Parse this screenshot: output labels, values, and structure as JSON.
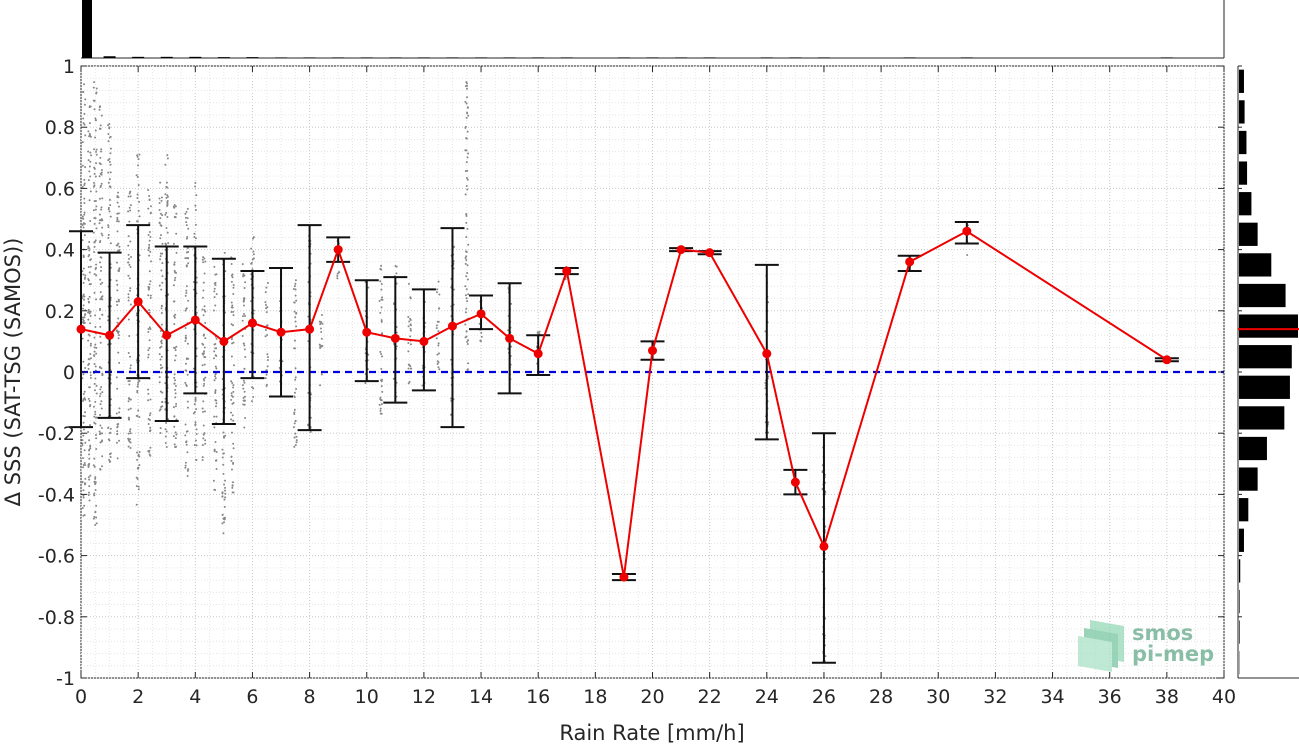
{
  "chart_data": {
    "type": "scatter",
    "xlabel": "Rain Rate [mm/h]",
    "ylabel": "Δ SSS (SAT-TSG (SAMOS))",
    "xlim": [
      0,
      40
    ],
    "ylim": [
      -1,
      1
    ],
    "x_ticks": [
      0,
      2,
      4,
      6,
      8,
      10,
      12,
      14,
      16,
      18,
      20,
      22,
      24,
      26,
      28,
      30,
      32,
      34,
      36,
      38,
      40
    ],
    "y_ticks": [
      -1,
      -0.8,
      -0.6,
      -0.4,
      -0.2,
      0,
      0.2,
      0.4,
      0.6,
      0.8,
      1
    ],
    "y_tick_labels": [
      "-1",
      "-0.8",
      "-0.6",
      "-0.4",
      "-0.2",
      "0",
      "0.2",
      "0.4",
      "0.6",
      "0.8",
      "1"
    ],
    "grid": true,
    "zero_line": {
      "y": 0,
      "color": "#0000dd",
      "style": "dashed"
    },
    "mean_series": {
      "color": "#ee0000",
      "points": [
        {
          "x": 0,
          "y": 0.14,
          "low": -0.18,
          "high": 0.46
        },
        {
          "x": 1,
          "y": 0.12,
          "low": -0.15,
          "high": 0.39
        },
        {
          "x": 2,
          "y": 0.23,
          "low": -0.02,
          "high": 0.48
        },
        {
          "x": 3,
          "y": 0.12,
          "low": -0.16,
          "high": 0.41
        },
        {
          "x": 4,
          "y": 0.17,
          "low": -0.07,
          "high": 0.41
        },
        {
          "x": 5,
          "y": 0.1,
          "low": -0.17,
          "high": 0.37
        },
        {
          "x": 6,
          "y": 0.16,
          "low": -0.02,
          "high": 0.33
        },
        {
          "x": 7,
          "y": 0.13,
          "low": -0.08,
          "high": 0.34
        },
        {
          "x": 8,
          "y": 0.14,
          "low": -0.19,
          "high": 0.48
        },
        {
          "x": 9,
          "y": 0.4,
          "low": 0.36,
          "high": 0.44
        },
        {
          "x": 10,
          "y": 0.13,
          "low": -0.03,
          "high": 0.3
        },
        {
          "x": 11,
          "y": 0.11,
          "low": -0.1,
          "high": 0.31
        },
        {
          "x": 12,
          "y": 0.1,
          "low": -0.06,
          "high": 0.27
        },
        {
          "x": 13,
          "y": 0.15,
          "low": -0.18,
          "high": 0.47
        },
        {
          "x": 14,
          "y": 0.19,
          "low": 0.14,
          "high": 0.25
        },
        {
          "x": 15,
          "y": 0.11,
          "low": -0.07,
          "high": 0.29
        },
        {
          "x": 16,
          "y": 0.06,
          "low": -0.01,
          "high": 0.12
        },
        {
          "x": 17,
          "y": 0.33,
          "low": 0.32,
          "high": 0.34
        },
        {
          "x": 19,
          "y": -0.67,
          "low": -0.68,
          "high": -0.66
        },
        {
          "x": 20,
          "y": 0.07,
          "low": 0.04,
          "high": 0.1
        },
        {
          "x": 21,
          "y": 0.4,
          "low": 0.395,
          "high": 0.405
        },
        {
          "x": 22,
          "y": 0.39,
          "low": 0.385,
          "high": 0.395
        },
        {
          "x": 24,
          "y": 0.06,
          "low": -0.22,
          "high": 0.35
        },
        {
          "x": 25,
          "y": -0.36,
          "low": -0.4,
          "high": -0.32
        },
        {
          "x": 26,
          "y": -0.57,
          "low": -0.95,
          "high": -0.2
        },
        {
          "x": 29,
          "y": 0.36,
          "low": 0.33,
          "high": 0.38
        },
        {
          "x": 31,
          "y": 0.46,
          "low": 0.42,
          "high": 0.49
        },
        {
          "x": 38,
          "y": 0.04,
          "low": 0.035,
          "high": 0.045
        }
      ]
    },
    "scatter_columns": [
      {
        "x": 0.1,
        "ymin": -0.48,
        "ymax": 0.98
      },
      {
        "x": 0.3,
        "ymin": -0.42,
        "ymax": 0.92
      },
      {
        "x": 0.5,
        "ymin": -0.5,
        "ymax": 0.96
      },
      {
        "x": 0.7,
        "ymin": -0.35,
        "ymax": 0.9
      },
      {
        "x": 1.0,
        "ymin": -0.3,
        "ymax": 0.82
      },
      {
        "x": 1.3,
        "ymin": -0.3,
        "ymax": 0.6
      },
      {
        "x": 1.7,
        "ymin": -0.25,
        "ymax": 0.6
      },
      {
        "x": 2.0,
        "ymin": -0.45,
        "ymax": 0.72
      },
      {
        "x": 2.4,
        "ymin": -0.3,
        "ymax": 0.6
      },
      {
        "x": 2.8,
        "ymin": -0.2,
        "ymax": 0.62
      },
      {
        "x": 3.0,
        "ymin": -0.25,
        "ymax": 0.75
      },
      {
        "x": 3.3,
        "ymin": -0.25,
        "ymax": 0.55
      },
      {
        "x": 3.7,
        "ymin": -0.35,
        "ymax": 0.55
      },
      {
        "x": 4.0,
        "ymin": -0.3,
        "ymax": 0.62
      },
      {
        "x": 4.3,
        "ymin": -0.3,
        "ymax": 0.4
      },
      {
        "x": 4.7,
        "ymin": -0.4,
        "ymax": 0.36
      },
      {
        "x": 5.0,
        "ymin": -0.55,
        "ymax": 0.4
      },
      {
        "x": 5.3,
        "ymin": -0.4,
        "ymax": 0.4
      },
      {
        "x": 5.7,
        "ymin": -0.2,
        "ymax": 0.4
      },
      {
        "x": 6.0,
        "ymin": -0.1,
        "ymax": 0.45
      },
      {
        "x": 6.5,
        "ymin": -0.05,
        "ymax": 0.3
      },
      {
        "x": 7.0,
        "ymin": -0.05,
        "ymax": 0.25
      },
      {
        "x": 7.5,
        "ymin": -0.25,
        "ymax": 0.3
      },
      {
        "x": 8.0,
        "ymin": -0.2,
        "ymax": 0.45
      },
      {
        "x": 8.4,
        "ymin": -0.05,
        "ymax": 0.2
      },
      {
        "x": 9.0,
        "ymin": 0.3,
        "ymax": 0.45
      },
      {
        "x": 10.0,
        "ymin": -0.05,
        "ymax": 0.3
      },
      {
        "x": 10.5,
        "ymin": -0.15,
        "ymax": 0.35
      },
      {
        "x": 11.0,
        "ymin": -0.1,
        "ymax": 0.35
      },
      {
        "x": 11.5,
        "ymin": -0.05,
        "ymax": 0.3
      },
      {
        "x": 12.0,
        "ymin": -0.05,
        "ymax": 0.25
      },
      {
        "x": 12.5,
        "ymin": 0.0,
        "ymax": 0.3
      },
      {
        "x": 13.0,
        "ymin": -0.15,
        "ymax": 0.45
      },
      {
        "x": 13.5,
        "ymin": -0.05,
        "ymax": 0.95
      },
      {
        "x": 14.0,
        "ymin": 0.1,
        "ymax": 0.25
      },
      {
        "x": 15.0,
        "ymin": -0.05,
        "ymax": 0.3
      },
      {
        "x": 16.0,
        "ymin": 0.0,
        "ymax": 0.15
      },
      {
        "x": 17.0,
        "ymin": 0.3,
        "ymax": 0.35
      },
      {
        "x": 24.0,
        "ymin": -0.2,
        "ymax": 0.35
      },
      {
        "x": 26.0,
        "ymin": -0.95,
        "ymax": -0.2
      },
      {
        "x": 29.0,
        "ymin": 0.34,
        "ymax": 0.38
      },
      {
        "x": 31.0,
        "ymin": 0.38,
        "ymax": 0.48
      }
    ],
    "top_histogram": {
      "x": [
        0,
        1,
        2,
        3,
        4,
        5,
        6,
        7,
        8,
        9,
        10,
        11,
        12,
        13,
        14,
        15,
        16,
        17,
        19,
        20,
        21,
        22,
        24,
        25,
        26,
        29,
        31,
        38
      ],
      "counts": [
        100,
        3,
        2,
        2,
        2,
        1.5,
        1.5,
        1,
        1,
        1,
        1,
        1,
        1,
        1,
        1,
        1,
        1,
        1,
        1,
        1,
        1,
        1,
        1,
        1,
        1,
        1,
        1,
        1
      ]
    },
    "right_histogram": {
      "bins": [
        0.95,
        0.85,
        0.75,
        0.65,
        0.55,
        0.45,
        0.35,
        0.25,
        0.15,
        0.05,
        -0.05,
        -0.15,
        -0.25,
        -0.35,
        -0.45,
        -0.55,
        -0.65,
        -0.75,
        -0.85,
        -0.95
      ],
      "counts": [
        8,
        9,
        12,
        13,
        20,
        30,
        52,
        75,
        95,
        85,
        82,
        73,
        45,
        30,
        15,
        8,
        2,
        1,
        1,
        0.5
      ],
      "median_line": {
        "y": 0.14,
        "color": "#ee0000"
      }
    }
  },
  "logo": {
    "line1": "smos",
    "line2": "pi-mep"
  },
  "colors": {
    "mean_line": "#ee0000",
    "zero_line": "#0000dd",
    "scatter": "#888888",
    "errorbar": "#111111"
  }
}
